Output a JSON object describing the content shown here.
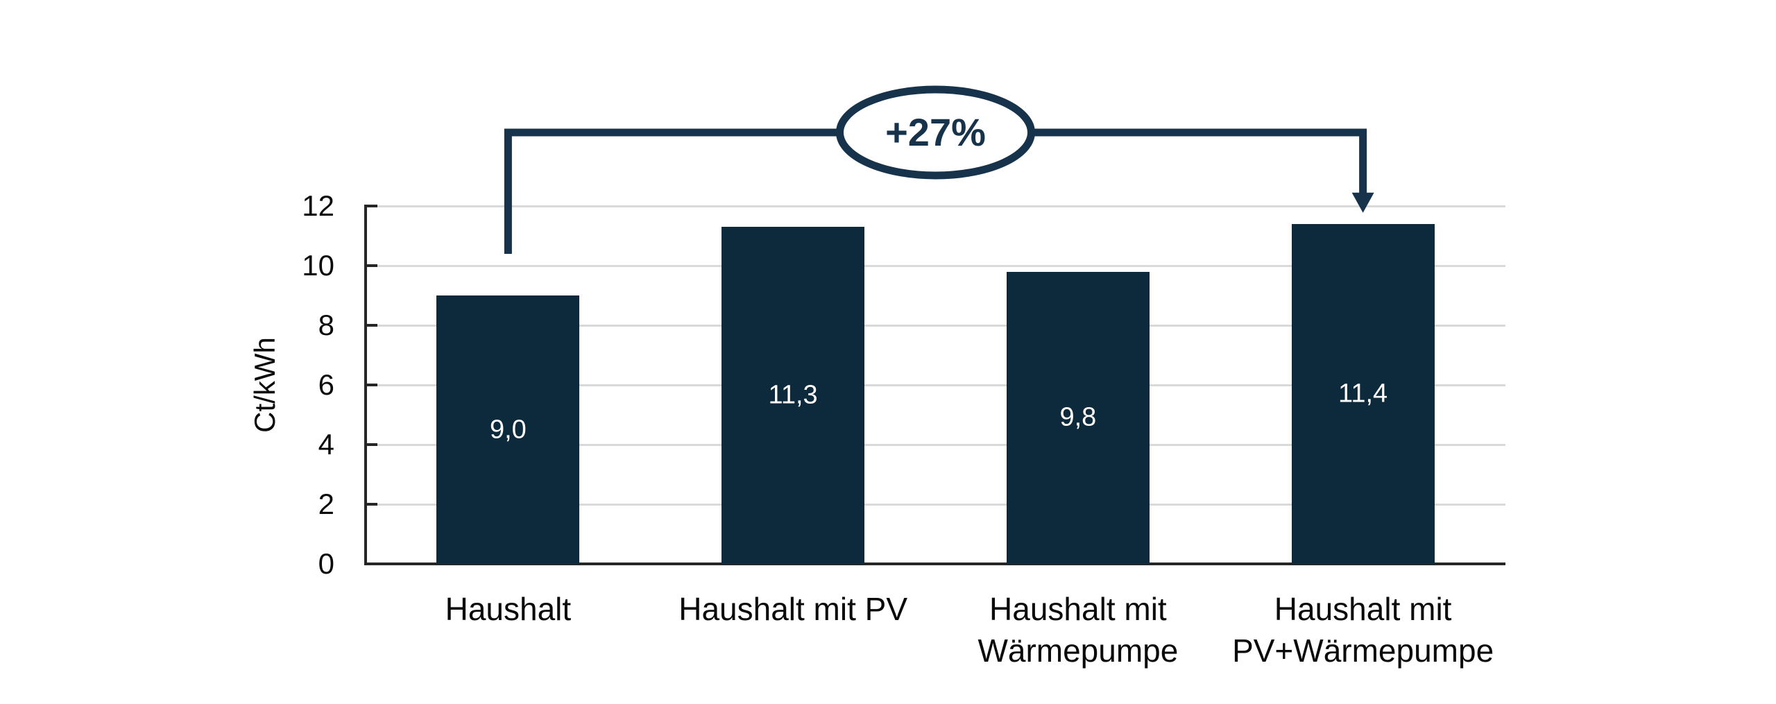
{
  "chart_data": {
    "type": "bar",
    "title": "",
    "xlabel": "",
    "ylabel": "Ct/kWh",
    "ylim": [
      0,
      12
    ],
    "yticks": [
      0,
      2,
      4,
      6,
      8,
      10,
      12
    ],
    "grid": "horizontal",
    "legend": "none",
    "categories": [
      "Haushalt",
      "Haushalt mit PV",
      "Haushalt mit\nWärmepumpe",
      "Haushalt mit\nPV+Wärmepumpe"
    ],
    "values": [
      9.0,
      11.3,
      9.8,
      11.4
    ],
    "value_labels": [
      "9,0",
      "11,3",
      "9,8",
      "11,4"
    ],
    "annotation": {
      "label": "+27%",
      "from_category_index": 0,
      "to_category_index": 3
    }
  },
  "colors": {
    "background": "#ffffff",
    "bar_fill": "#0d2a3c",
    "annotation": "#17334c",
    "axis": "#262626",
    "gridline": "#d9d9d9",
    "tick_label": "#0a0a0a",
    "value_label": "#ffffff"
  }
}
